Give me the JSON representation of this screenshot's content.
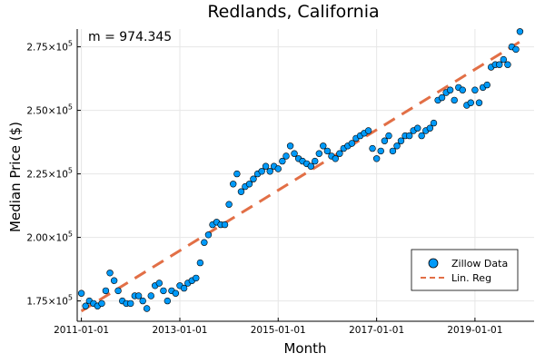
{
  "chart_data": {
    "type": "scatter",
    "title": "Redlands, California",
    "xlabel": "Month",
    "ylabel": "Median Price ($)",
    "annotation": "m = 974.345",
    "xlim": [
      "2010-12-01",
      "2020-03-15"
    ],
    "ylim": [
      167000,
      282000
    ],
    "x_ticks": [
      "2011-01-01",
      "2013-01-01",
      "2015-01-01",
      "2017-01-01",
      "2019-01-01"
    ],
    "y_ticks": [
      {
        "value": 175000,
        "mantissa": "1.75",
        "base": "×10",
        "exp": "5"
      },
      {
        "value": 200000,
        "mantissa": "2.00",
        "base": "×10",
        "exp": "5"
      },
      {
        "value": 225000,
        "mantissa": "2.25",
        "base": "×10",
        "exp": "5"
      },
      {
        "value": 250000,
        "mantissa": "2.50",
        "base": "×10",
        "exp": "5"
      },
      {
        "value": 275000,
        "mantissa": "2.75",
        "base": "×10",
        "exp": "5"
      }
    ],
    "grid": true,
    "legend_position": "bottom-right",
    "colors": {
      "scatter": "#009af9",
      "line": "#e26f46"
    },
    "series": [
      {
        "name": "Zillow Data",
        "kind": "scatter",
        "x": [
          "2011-01-01",
          "2011-02-01",
          "2011-03-01",
          "2011-04-01",
          "2011-05-01",
          "2011-06-01",
          "2011-07-01",
          "2011-08-01",
          "2011-09-01",
          "2011-10-01",
          "2011-11-01",
          "2011-12-01",
          "2012-01-01",
          "2012-02-01",
          "2012-03-01",
          "2012-04-01",
          "2012-05-01",
          "2012-06-01",
          "2012-07-01",
          "2012-08-01",
          "2012-09-01",
          "2012-10-01",
          "2012-11-01",
          "2012-12-01",
          "2013-01-01",
          "2013-02-01",
          "2013-03-01",
          "2013-04-01",
          "2013-05-01",
          "2013-06-01",
          "2013-07-01",
          "2013-08-01",
          "2013-09-01",
          "2013-10-01",
          "2013-11-01",
          "2013-12-01",
          "2014-01-01",
          "2014-02-01",
          "2014-03-01",
          "2014-04-01",
          "2014-05-01",
          "2014-06-01",
          "2014-07-01",
          "2014-08-01",
          "2014-09-01",
          "2014-10-01",
          "2014-11-01",
          "2014-12-01",
          "2015-01-01",
          "2015-02-01",
          "2015-03-01",
          "2015-04-01",
          "2015-05-01",
          "2015-06-01",
          "2015-07-01",
          "2015-08-01",
          "2015-09-01",
          "2015-10-01",
          "2015-11-01",
          "2015-12-01",
          "2016-01-01",
          "2016-02-01",
          "2016-03-01",
          "2016-04-01",
          "2016-05-01",
          "2016-06-01",
          "2016-07-01",
          "2016-08-01",
          "2016-09-01",
          "2016-10-01",
          "2016-11-01",
          "2016-12-01",
          "2017-01-01",
          "2017-02-01",
          "2017-03-01",
          "2017-04-01",
          "2017-05-01",
          "2017-06-01",
          "2017-07-01",
          "2017-08-01",
          "2017-09-01",
          "2017-10-01",
          "2017-11-01",
          "2017-12-01",
          "2018-01-01",
          "2018-02-01",
          "2018-03-01",
          "2018-04-01",
          "2018-05-01",
          "2018-06-01",
          "2018-07-01",
          "2018-08-01",
          "2018-09-01",
          "2018-10-01",
          "2018-11-01",
          "2018-12-01",
          "2019-01-01",
          "2019-02-01",
          "2019-03-01",
          "2019-04-01",
          "2019-05-01",
          "2019-06-01",
          "2019-07-01",
          "2019-08-01",
          "2019-09-01",
          "2019-10-01",
          "2019-11-01",
          "2019-12-01"
        ],
        "y": [
          178000,
          173000,
          175000,
          174000,
          173000,
          174000,
          179000,
          186000,
          183000,
          179000,
          175000,
          174000,
          174000,
          177000,
          177000,
          175000,
          172000,
          177000,
          181000,
          182000,
          179000,
          175000,
          179000,
          178000,
          181000,
          180000,
          182000,
          183000,
          184000,
          190000,
          198000,
          201000,
          205000,
          206000,
          205000,
          205000,
          213000,
          221000,
          225000,
          218000,
          220000,
          221000,
          223000,
          225000,
          226000,
          228000,
          226000,
          228000,
          227000,
          230000,
          232000,
          236000,
          233000,
          231000,
          230000,
          229000,
          228000,
          230000,
          233000,
          236000,
          234000,
          232000,
          231000,
          233000,
          235000,
          236000,
          237000,
          239000,
          240000,
          241000,
          242000,
          235000,
          231000,
          234000,
          238000,
          240000,
          234000,
          236000,
          238000,
          240000,
          240000,
          242000,
          243000,
          240000,
          242000,
          243000,
          245000,
          254000,
          255000,
          257000,
          258000,
          254000,
          259000,
          258000,
          252000,
          253000,
          258000,
          253000,
          259000,
          260000,
          267000,
          268000,
          268000,
          270000,
          268000,
          275000,
          274000,
          281000
        ]
      },
      {
        "name": "Lin. Reg",
        "kind": "line",
        "x": [
          "2011-01-01",
          "2019-12-01"
        ],
        "y": [
          171000,
          277000
        ]
      }
    ]
  }
}
